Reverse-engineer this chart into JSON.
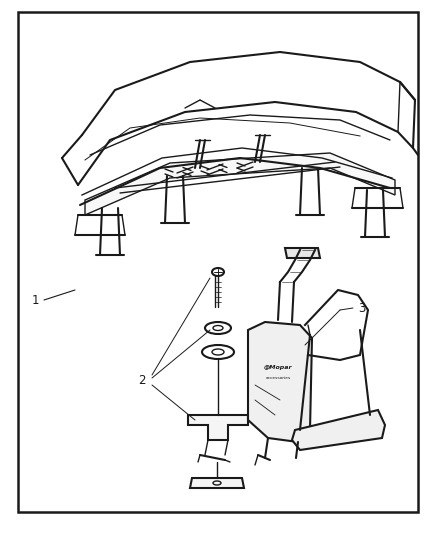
{
  "background_color": "#ffffff",
  "border_color": "#1a1a1a",
  "border_linewidth": 1.8,
  "fig_width": 4.38,
  "fig_height": 5.33,
  "label_1": "1",
  "label_2": "2",
  "label_3": "3",
  "line_color": "#1a1a1a",
  "text_fontsize": 8.5,
  "dpi": 100
}
